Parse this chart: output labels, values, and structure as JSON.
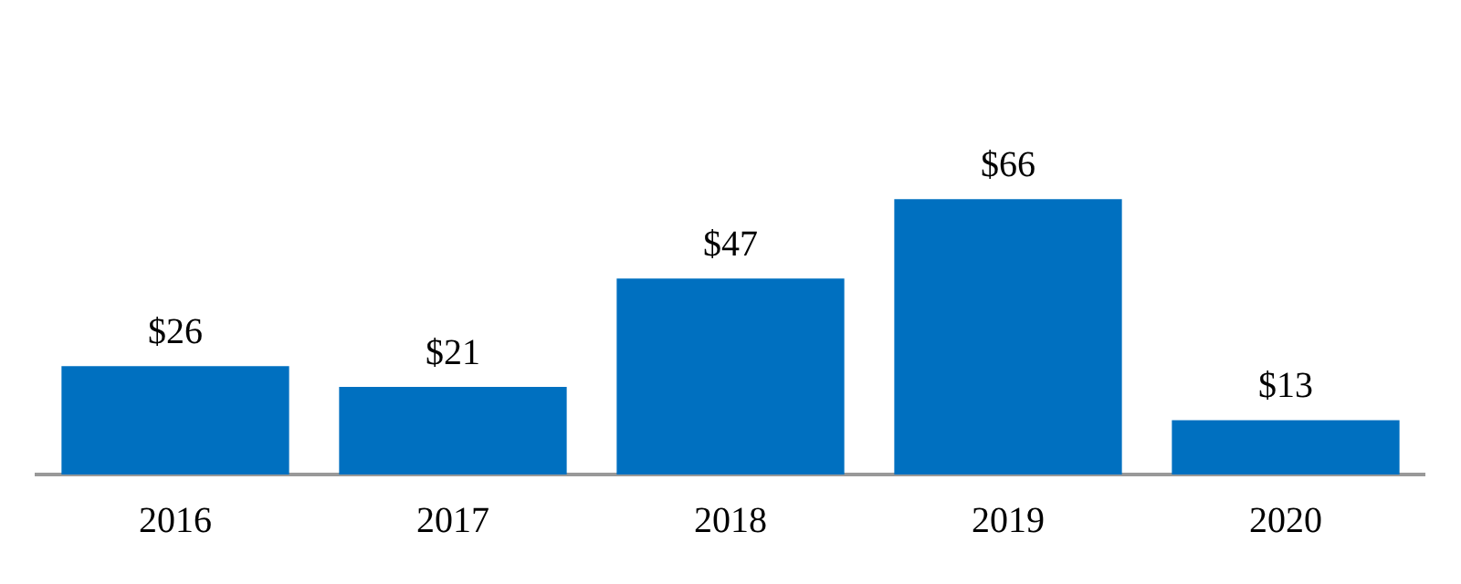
{
  "chart_data": {
    "type": "bar",
    "categories": [
      "2016",
      "2017",
      "2018",
      "2019",
      "2020"
    ],
    "values": [
      26,
      21,
      47,
      66,
      13
    ],
    "value_labels": [
      "$26",
      "$21",
      "$47",
      "$66",
      "$13"
    ],
    "color": "#0070c0",
    "grid": false,
    "legend": false
  }
}
